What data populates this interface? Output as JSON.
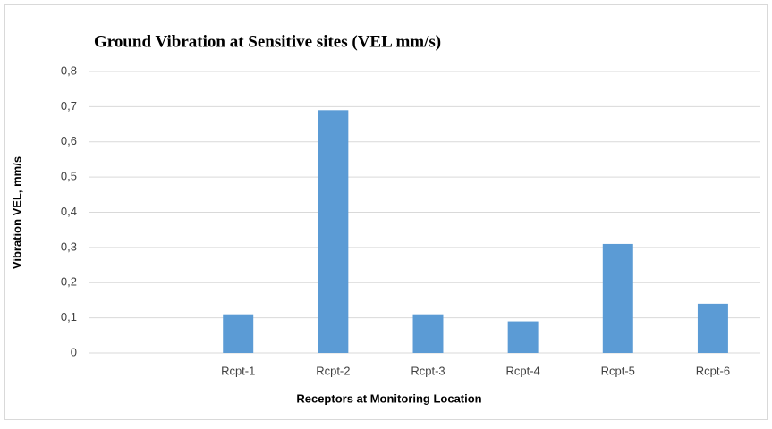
{
  "chart_data": {
    "type": "bar",
    "title": "Ground Vibration at Sensitive sites  (VEL mm/s)",
    "x_label": "Receptors at Monitoring Location",
    "y_label": "Vibration VEL, mm/s",
    "categories": [
      null,
      "Rcpt-1",
      "Rcpt-2",
      "Rcpt-3",
      "Rcpt-4",
      "Rcpt-5",
      "Rcpt-6"
    ],
    "values": [
      null,
      0.11,
      0.69,
      0.11,
      0.09,
      0.31,
      0.14
    ],
    "color": "#5b9bd5",
    "ylim": [
      0,
      0.8
    ],
    "yticks": [
      0,
      {
        "value": 0.1,
        "label": "0,1"
      },
      {
        "value": 0.2,
        "label": "0,2"
      },
      {
        "value": 0.3,
        "label": "0,3"
      },
      {
        "value": 0.4,
        "label": "0,4"
      },
      {
        "value": 0.5,
        "label": "0,5"
      },
      {
        "value": 0.6,
        "label": "0,6"
      },
      {
        "value": 0.7,
        "label": "0,7"
      },
      {
        "value": 0.8,
        "label": "0,8"
      }
    ],
    "grid": true
  }
}
